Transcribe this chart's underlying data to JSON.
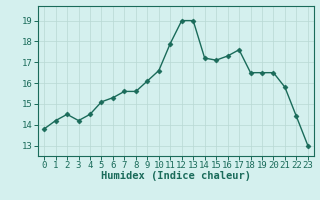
{
  "x": [
    0,
    1,
    2,
    3,
    4,
    5,
    6,
    7,
    8,
    9,
    10,
    11,
    12,
    13,
    14,
    15,
    16,
    17,
    18,
    19,
    20,
    21,
    22,
    23
  ],
  "y": [
    13.8,
    14.2,
    14.5,
    14.2,
    14.5,
    15.1,
    15.3,
    15.6,
    15.6,
    16.1,
    16.6,
    17.9,
    19.0,
    19.0,
    17.2,
    17.1,
    17.3,
    17.6,
    16.5,
    16.5,
    16.5,
    15.8,
    14.4,
    13.0
  ],
  "line_color": "#1a6b5a",
  "bg_color": "#d4f0ee",
  "grid_color": "#b8d8d4",
  "xlabel": "Humidex (Indice chaleur)",
  "ylabel_ticks": [
    13,
    14,
    15,
    16,
    17,
    18,
    19
  ],
  "xtick_labels": [
    "0",
    "1",
    "2",
    "3",
    "4",
    "5",
    "6",
    "7",
    "8",
    "9",
    "10",
    "11",
    "12",
    "13",
    "14",
    "15",
    "16",
    "17",
    "18",
    "19",
    "20",
    "21",
    "22",
    "23"
  ],
  "ylim": [
    12.5,
    19.7
  ],
  "xlim": [
    -0.5,
    23.5
  ],
  "marker": "D",
  "markersize": 2.5,
  "linewidth": 1.0,
  "xlabel_fontsize": 7.5,
  "tick_fontsize": 6.5
}
